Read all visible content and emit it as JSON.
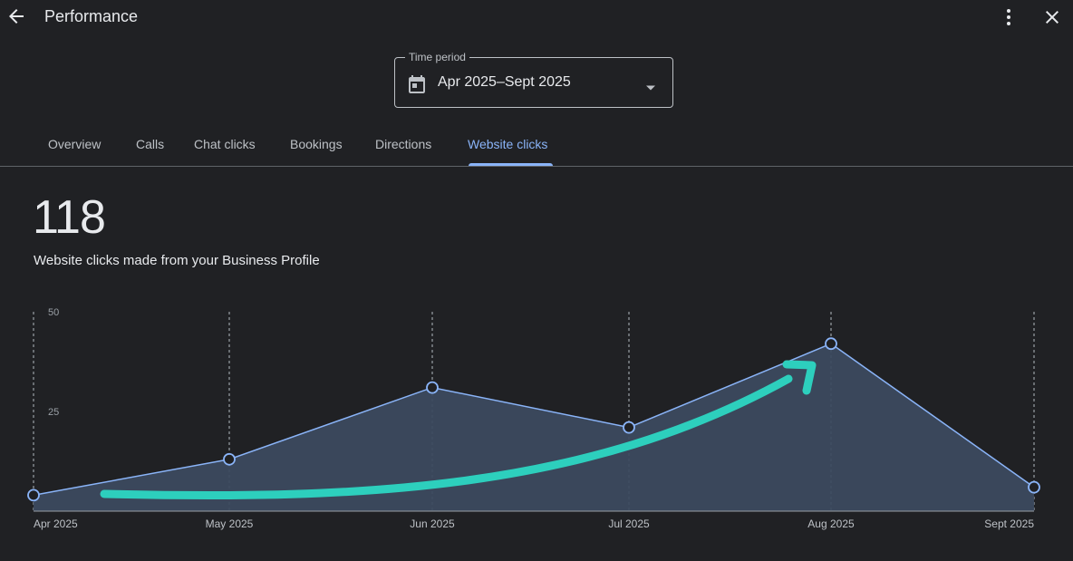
{
  "header": {
    "title": "Performance",
    "back_icon": "arrow-back",
    "more_icon": "more-vertical",
    "close_icon": "close"
  },
  "time_period": {
    "label": "Time period",
    "value": "Apr 2025–Sept 2025",
    "icon": "calendar"
  },
  "tabs": [
    {
      "label": "Overview",
      "active": false
    },
    {
      "label": "Calls",
      "active": false
    },
    {
      "label": "Chat clicks",
      "active": false
    },
    {
      "label": "Bookings",
      "active": false
    },
    {
      "label": "Directions",
      "active": false
    },
    {
      "label": "Website clicks",
      "active": true
    }
  ],
  "metric": {
    "value": "118",
    "description": "Website clicks made from your Business Profile"
  },
  "colors": {
    "background": "#202124",
    "accent": "#8ab4f8",
    "area_fill": "#3c4a5f",
    "annotation_arrow": "#2dcfbd"
  },
  "chart_data": {
    "type": "area",
    "categories": [
      "Apr 2025",
      "May 2025",
      "Jun 2025",
      "Jul 2025",
      "Aug 2025",
      "Sept 2025"
    ],
    "values": [
      4,
      13,
      31,
      21,
      42,
      6
    ],
    "y_ticks": [
      25,
      50
    ],
    "ylim": [
      0,
      50
    ],
    "grid": "vertical-dashed"
  }
}
